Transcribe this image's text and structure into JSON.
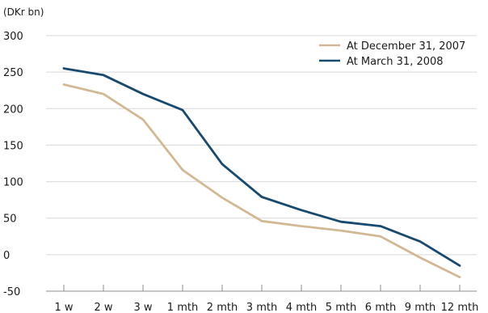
{
  "chart_data": {
    "type": "line",
    "ylabel": "(DKr bn)",
    "categories": [
      "1 w",
      "2 w",
      "3 w",
      "1 mth",
      "2 mth",
      "3 mth",
      "4 mth",
      "5 mth",
      "6 mth",
      "9 mth",
      "12 mth"
    ],
    "ylim": [
      -50,
      300
    ],
    "yticks": [
      -50,
      0,
      50,
      100,
      150,
      200,
      250,
      300
    ],
    "grid": true,
    "legend_position": "top-right",
    "series": [
      {
        "name": "At December 31, 2007",
        "color": "#d1b994",
        "values": [
          233,
          220,
          185,
          116,
          78,
          46,
          39,
          33,
          25,
          -4,
          -31
        ]
      },
      {
        "name": "At March 31, 2008",
        "color": "#174a6e",
        "values": [
          255,
          246,
          220,
          198,
          124,
          79,
          61,
          45,
          39,
          18,
          -15
        ]
      }
    ]
  }
}
